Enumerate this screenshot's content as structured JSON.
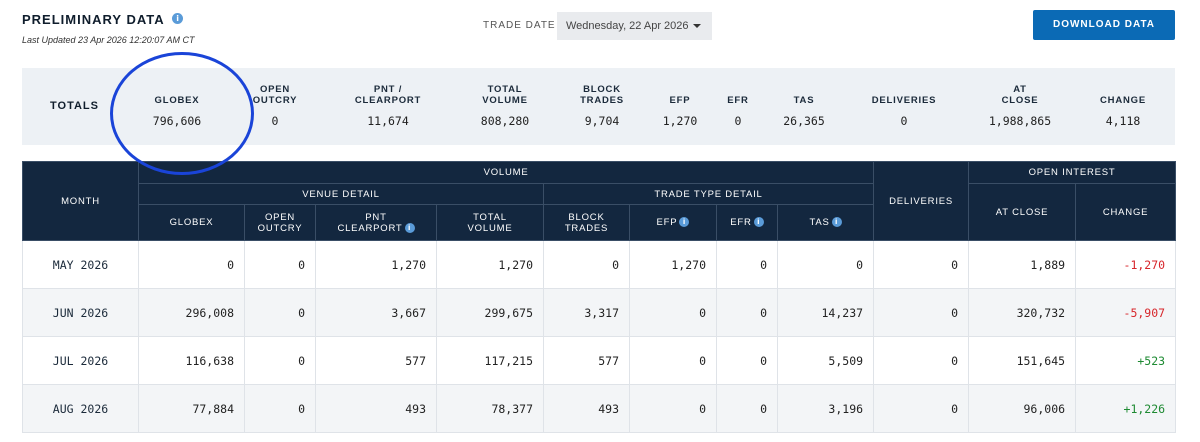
{
  "header": {
    "title": "PRELIMINARY DATA",
    "last_updated": "Last Updated 23 Apr 2026 12:20:07 AM CT",
    "trade_date_label": "TRADE DATE",
    "trade_date_value": "Wednesday, 22 Apr 2026",
    "download_label": "DOWNLOAD DATA"
  },
  "totals": {
    "label": "TOTALS",
    "columns": [
      {
        "line1": "GLOBEX",
        "line2": "",
        "value": "796,606"
      },
      {
        "line1": "OPEN",
        "line2": "OUTCRY",
        "value": "0"
      },
      {
        "line1": "PNT /",
        "line2": "CLEARPORT",
        "value": "11,674"
      },
      {
        "line1": "TOTAL",
        "line2": "VOLUME",
        "value": "808,280"
      },
      {
        "line1": "BLOCK",
        "line2": "TRADES",
        "value": "9,704"
      },
      {
        "line1": "EFP",
        "line2": "",
        "value": "1,270"
      },
      {
        "line1": "EFR",
        "line2": "",
        "value": "0"
      },
      {
        "line1": "TAS",
        "line2": "",
        "value": "26,365"
      },
      {
        "line1": "DELIVERIES",
        "line2": "",
        "value": "0"
      },
      {
        "line1": "AT",
        "line2": "CLOSE",
        "value": "1,988,865"
      },
      {
        "line1": "CHANGE",
        "line2": "",
        "value": "4,118"
      }
    ]
  },
  "table": {
    "h_month": "MONTH",
    "h_volume": "VOLUME",
    "h_venue_detail": "VENUE DETAIL",
    "h_trade_type_detail": "TRADE TYPE DETAIL",
    "h_deliveries": "DELIVERIES",
    "h_open_interest": "OPEN INTEREST",
    "h_globex": "GLOBEX",
    "h_open_outcry_1": "OPEN",
    "h_open_outcry_2": "OUTCRY",
    "h_pnt_1": "PNT",
    "h_pnt_2": "CLEARPORT",
    "h_total_volume_1": "TOTAL",
    "h_total_volume_2": "VOLUME",
    "h_block_trades_1": "BLOCK",
    "h_block_trades_2": "TRADES",
    "h_efp": "EFP",
    "h_efr": "EFR",
    "h_tas": "TAS",
    "h_at_close": "AT CLOSE",
    "h_change": "CHANGE",
    "rows": [
      {
        "month": "MAY 2026",
        "globex": "0",
        "open_outcry": "0",
        "pnt": "1,270",
        "total_volume": "1,270",
        "block_trades": "0",
        "efp": "1,270",
        "efr": "0",
        "tas": "0",
        "deliveries": "0",
        "at_close": "1,889",
        "change": "-1,270"
      },
      {
        "month": "JUN 2026",
        "globex": "296,008",
        "open_outcry": "0",
        "pnt": "3,667",
        "total_volume": "299,675",
        "block_trades": "3,317",
        "efp": "0",
        "efr": "0",
        "tas": "14,237",
        "deliveries": "0",
        "at_close": "320,732",
        "change": "-5,907"
      },
      {
        "month": "JUL 2026",
        "globex": "116,638",
        "open_outcry": "0",
        "pnt": "577",
        "total_volume": "117,215",
        "block_trades": "577",
        "efp": "0",
        "efr": "0",
        "tas": "5,509",
        "deliveries": "0",
        "at_close": "151,645",
        "change": "+523"
      },
      {
        "month": "AUG 2026",
        "globex": "77,884",
        "open_outcry": "0",
        "pnt": "493",
        "total_volume": "78,377",
        "block_trades": "493",
        "efp": "0",
        "efr": "0",
        "tas": "3,196",
        "deliveries": "0",
        "at_close": "96,006",
        "change": "+1,226"
      }
    ]
  },
  "colors": {
    "header_bg": "#13273f",
    "accent": "#0b6ab5",
    "negative": "#d7262b",
    "positive": "#1d8a32",
    "annotation_circle": "#1a44d8"
  },
  "icons": {
    "info": "info-icon",
    "caret": "chevron-down-icon"
  }
}
